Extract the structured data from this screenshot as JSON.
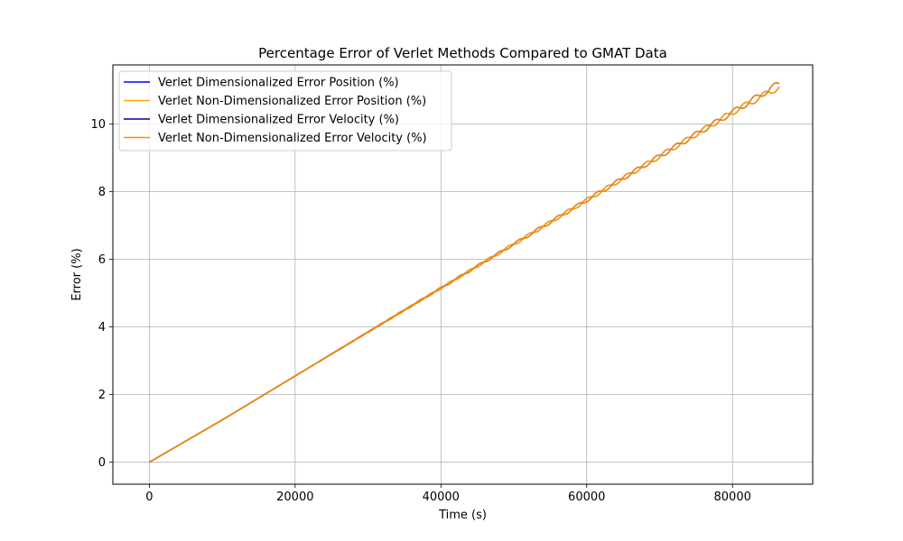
{
  "chart_data": {
    "type": "line",
    "title": "Percentage Error of Verlet Methods Compared to GMAT Data",
    "xlabel": "Time (s)",
    "ylabel": "Error (%)",
    "xlim": [
      -5000,
      91000
    ],
    "ylim": [
      -0.65,
      11.75
    ],
    "xticks": [
      0,
      20000,
      40000,
      60000,
      80000
    ],
    "xtick_labels": [
      "0",
      "20000",
      "40000",
      "60000",
      "80000"
    ],
    "yticks": [
      0,
      2,
      4,
      6,
      8,
      10
    ],
    "ytick_labels": [
      "0",
      "2",
      "4",
      "6",
      "8",
      "10"
    ],
    "grid": true,
    "legend_position": "top-left",
    "x_end": 86400,
    "series": [
      {
        "name": "Verlet Dimensionalized Error Position (%)",
        "color": "#0000ff",
        "x": [
          0,
          10000,
          20000,
          30000,
          40000,
          50000,
          60000,
          70000,
          80000,
          86400
        ],
        "y": [
          0,
          1.25,
          2.55,
          3.85,
          5.15,
          6.45,
          7.75,
          9.05,
          10.35,
          11.1
        ]
      },
      {
        "name": "Verlet Non-Dimensionalized Error Position (%)",
        "color": "#ffa500",
        "x": [
          0,
          10000,
          20000,
          30000,
          40000,
          50000,
          60000,
          70000,
          80000,
          86400
        ],
        "y": [
          0,
          1.25,
          2.55,
          3.85,
          5.15,
          6.45,
          7.75,
          9.05,
          10.35,
          11.1
        ]
      },
      {
        "name": "Verlet Dimensionalized Error Velocity (%)",
        "color": "#00008b",
        "x": [
          0,
          10000,
          20000,
          30000,
          40000,
          50000,
          60000,
          70000,
          80000,
          86400
        ],
        "y": [
          0,
          1.25,
          2.55,
          3.85,
          5.15,
          6.45,
          7.75,
          9.05,
          10.35,
          11.2
        ]
      },
      {
        "name": "Verlet Non-Dimensionalized Error Velocity (%)",
        "color": "#ff8c00",
        "x": [
          0,
          10000,
          20000,
          30000,
          40000,
          50000,
          60000,
          70000,
          80000,
          86400
        ],
        "y": [
          0,
          1.25,
          2.55,
          3.85,
          5.15,
          6.45,
          7.75,
          9.05,
          10.35,
          11.2
        ]
      }
    ]
  }
}
